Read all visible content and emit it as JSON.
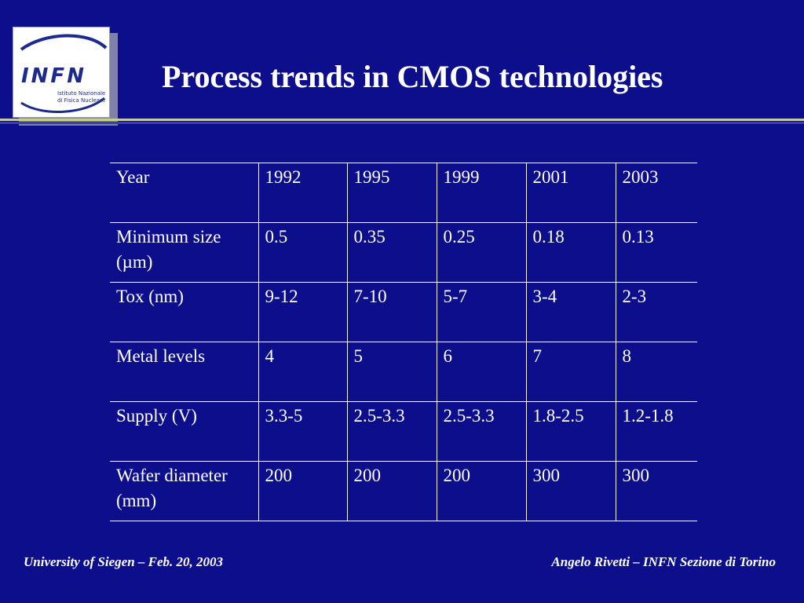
{
  "logo": {
    "text": "INFN",
    "subtitle_line1": "Istituto Nazionale",
    "subtitle_line2": "di Fisica Nucleare"
  },
  "slide": {
    "title": "Process trends in CMOS technologies"
  },
  "table": {
    "rows": [
      {
        "label": "Year",
        "values": [
          "1992",
          "1995",
          "1999",
          "2001",
          "2003"
        ]
      },
      {
        "label": "Minimum size (µm)",
        "values": [
          "0.5",
          "0.35",
          "0.25",
          "0.18",
          "0.13"
        ]
      },
      {
        "label": "Tox (nm)",
        "values": [
          "9-12",
          "7-10",
          "5-7",
          "3-4",
          "2-3"
        ]
      },
      {
        "label": "Metal levels",
        "values": [
          "4",
          "5",
          "6",
          "7",
          "8"
        ]
      },
      {
        "label": "Supply (V)",
        "values": [
          "3.3-5",
          "2.5-3.3",
          "2.5-3.3",
          "1.8-2.5",
          "1.2-1.8"
        ]
      },
      {
        "label": "Wafer diameter (mm)",
        "values": [
          "200",
          "200",
          "200",
          "300",
          "300"
        ]
      }
    ]
  },
  "footer": {
    "left": "University of Siegen – Feb. 20, 2003",
    "right": "Angelo Rivetti – INFN Sezione di Torino"
  },
  "colors": {
    "background": "#0c0e8c",
    "accent_rule": "#c8e22e",
    "logo_blue": "#1b2a8c"
  }
}
